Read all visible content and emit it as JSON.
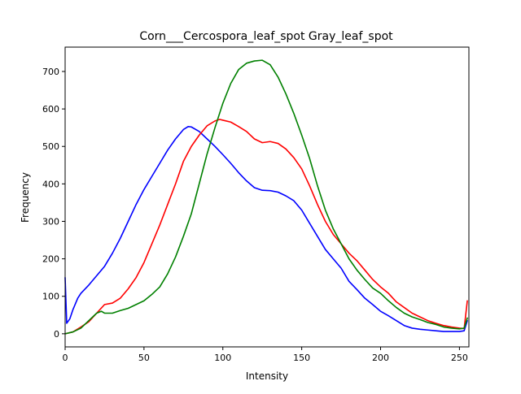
{
  "chart_data": {
    "type": "line",
    "title": "Corn___Cercospora_leaf_spot Gray_leaf_spot",
    "xlabel": "Intensity",
    "ylabel": "Frequency",
    "xlim": [
      0,
      256
    ],
    "ylim": [
      -35,
      765
    ],
    "grid": false,
    "legend": "none",
    "x_ticks": [
      0,
      50,
      100,
      150,
      200,
      250
    ],
    "y_ticks": [
      0,
      100,
      200,
      300,
      400,
      500,
      600,
      700
    ],
    "series": [
      {
        "color": "#0000ff",
        "points": [
          [
            0,
            150
          ],
          [
            1,
            28
          ],
          [
            3,
            40
          ],
          [
            5,
            65
          ],
          [
            8,
            95
          ],
          [
            10,
            108
          ],
          [
            15,
            130
          ],
          [
            20,
            155
          ],
          [
            25,
            180
          ],
          [
            30,
            215
          ],
          [
            35,
            255
          ],
          [
            40,
            300
          ],
          [
            45,
            345
          ],
          [
            50,
            385
          ],
          [
            55,
            420
          ],
          [
            60,
            455
          ],
          [
            65,
            490
          ],
          [
            70,
            520
          ],
          [
            75,
            545
          ],
          [
            78,
            553
          ],
          [
            80,
            552
          ],
          [
            85,
            540
          ],
          [
            90,
            520
          ],
          [
            95,
            500
          ],
          [
            100,
            478
          ],
          [
            105,
            455
          ],
          [
            110,
            430
          ],
          [
            115,
            408
          ],
          [
            120,
            390
          ],
          [
            125,
            383
          ],
          [
            130,
            382
          ],
          [
            135,
            378
          ],
          [
            140,
            368
          ],
          [
            145,
            355
          ],
          [
            150,
            330
          ],
          [
            155,
            295
          ],
          [
            160,
            260
          ],
          [
            165,
            225
          ],
          [
            170,
            200
          ],
          [
            175,
            175
          ],
          [
            180,
            140
          ],
          [
            185,
            118
          ],
          [
            190,
            95
          ],
          [
            195,
            78
          ],
          [
            200,
            60
          ],
          [
            205,
            48
          ],
          [
            210,
            35
          ],
          [
            215,
            22
          ],
          [
            220,
            15
          ],
          [
            225,
            12
          ],
          [
            230,
            10
          ],
          [
            235,
            8
          ],
          [
            240,
            6
          ],
          [
            245,
            6
          ],
          [
            250,
            6
          ],
          [
            253,
            8
          ],
          [
            255,
            35
          ]
        ]
      },
      {
        "color": "#ff0000",
        "points": [
          [
            0,
            0
          ],
          [
            5,
            5
          ],
          [
            10,
            18
          ],
          [
            15,
            32
          ],
          [
            20,
            55
          ],
          [
            25,
            78
          ],
          [
            30,
            82
          ],
          [
            35,
            95
          ],
          [
            40,
            120
          ],
          [
            45,
            150
          ],
          [
            50,
            190
          ],
          [
            55,
            240
          ],
          [
            60,
            290
          ],
          [
            65,
            345
          ],
          [
            70,
            400
          ],
          [
            75,
            460
          ],
          [
            80,
            500
          ],
          [
            85,
            530
          ],
          [
            90,
            555
          ],
          [
            95,
            568
          ],
          [
            98,
            572
          ],
          [
            100,
            570
          ],
          [
            105,
            565
          ],
          [
            110,
            553
          ],
          [
            115,
            540
          ],
          [
            120,
            520
          ],
          [
            125,
            510
          ],
          [
            130,
            513
          ],
          [
            135,
            508
          ],
          [
            140,
            493
          ],
          [
            145,
            470
          ],
          [
            150,
            440
          ],
          [
            155,
            395
          ],
          [
            160,
            345
          ],
          [
            165,
            300
          ],
          [
            170,
            265
          ],
          [
            175,
            240
          ],
          [
            180,
            215
          ],
          [
            185,
            195
          ],
          [
            190,
            170
          ],
          [
            195,
            145
          ],
          [
            200,
            125
          ],
          [
            205,
            108
          ],
          [
            210,
            85
          ],
          [
            215,
            70
          ],
          [
            220,
            55
          ],
          [
            225,
            45
          ],
          [
            230,
            35
          ],
          [
            235,
            28
          ],
          [
            240,
            22
          ],
          [
            245,
            18
          ],
          [
            250,
            15
          ],
          [
            253,
            14
          ],
          [
            255,
            88
          ]
        ]
      },
      {
        "color": "#008000",
        "points": [
          [
            0,
            0
          ],
          [
            5,
            5
          ],
          [
            10,
            15
          ],
          [
            15,
            35
          ],
          [
            20,
            55
          ],
          [
            23,
            60
          ],
          [
            25,
            55
          ],
          [
            30,
            55
          ],
          [
            35,
            62
          ],
          [
            40,
            68
          ],
          [
            45,
            78
          ],
          [
            50,
            88
          ],
          [
            55,
            105
          ],
          [
            60,
            125
          ],
          [
            65,
            160
          ],
          [
            70,
            205
          ],
          [
            75,
            260
          ],
          [
            80,
            320
          ],
          [
            85,
            400
          ],
          [
            90,
            480
          ],
          [
            95,
            550
          ],
          [
            100,
            615
          ],
          [
            105,
            668
          ],
          [
            110,
            705
          ],
          [
            115,
            722
          ],
          [
            120,
            728
          ],
          [
            125,
            730
          ],
          [
            130,
            718
          ],
          [
            135,
            685
          ],
          [
            140,
            640
          ],
          [
            145,
            588
          ],
          [
            150,
            530
          ],
          [
            155,
            468
          ],
          [
            160,
            395
          ],
          [
            165,
            330
          ],
          [
            170,
            280
          ],
          [
            175,
            240
          ],
          [
            180,
            200
          ],
          [
            185,
            170
          ],
          [
            190,
            145
          ],
          [
            195,
            122
          ],
          [
            200,
            108
          ],
          [
            205,
            88
          ],
          [
            210,
            70
          ],
          [
            215,
            55
          ],
          [
            220,
            45
          ],
          [
            225,
            38
          ],
          [
            230,
            30
          ],
          [
            235,
            25
          ],
          [
            240,
            18
          ],
          [
            245,
            15
          ],
          [
            250,
            13
          ],
          [
            253,
            15
          ],
          [
            255,
            42
          ]
        ]
      }
    ]
  }
}
